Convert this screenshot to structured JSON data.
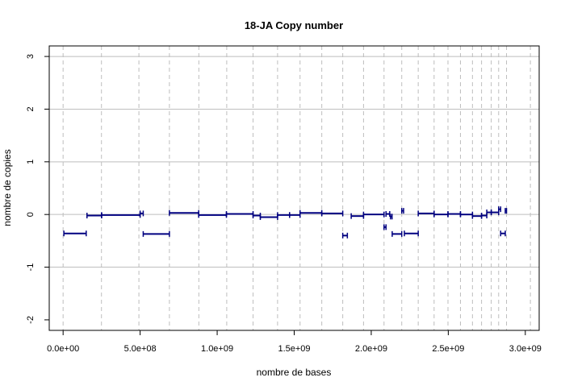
{
  "chart_data": {
    "type": "segment",
    "title": "18-JA Copy number",
    "xlabel": "nombre de bases",
    "ylabel": "nombre de copies",
    "xlim": [
      -90000000,
      3090000000
    ],
    "ylim": [
      -2.2,
      3.2
    ],
    "x_ticks": [
      0,
      500000000,
      1000000000,
      1500000000,
      2000000000,
      2500000000,
      3000000000
    ],
    "x_tick_labels": [
      "0.0e+00",
      "5.0e+08",
      "1.0e+09",
      "1.5e+09",
      "2.0e+09",
      "2.5e+09",
      "3.0e+09"
    ],
    "y_ticks": [
      -2,
      -1,
      0,
      1,
      2,
      3
    ],
    "y_tick_labels": [
      "-2",
      "-1",
      "0",
      "1",
      "2",
      "3"
    ],
    "horizontal_grid": [
      -1,
      0,
      1,
      2,
      3
    ],
    "chromosome_boundaries": [
      0,
      249000000,
      492000000,
      690000000,
      881000000,
      1062000000,
      1233000000,
      1392000000,
      1538000000,
      1679000000,
      1815000000,
      1950000000,
      2083000000,
      2198000000,
      2305000000,
      2408000000,
      2498000000,
      2579000000,
      2657000000,
      2716000000,
      2779000000,
      2827000000,
      2878000000,
      3033000000
    ],
    "line_color": "#000080",
    "grid_color": "#bebebe",
    "segments": [
      {
        "x0": 5000000,
        "x1": 150000000,
        "y": -0.36
      },
      {
        "x0": 155000000,
        "x1": 250000000,
        "y": -0.02
      },
      {
        "x0": 250000000,
        "x1": 500000000,
        "y": -0.01
      },
      {
        "x0": 500000000,
        "x1": 520000000,
        "y": 0.02
      },
      {
        "x0": 520000000,
        "x1": 690000000,
        "y": -0.37
      },
      {
        "x0": 690000000,
        "x1": 880000000,
        "y": 0.03
      },
      {
        "x0": 880000000,
        "x1": 1060000000,
        "y": -0.01
      },
      {
        "x0": 1060000000,
        "x1": 1233000000,
        "y": 0.01
      },
      {
        "x0": 1233000000,
        "x1": 1280000000,
        "y": -0.02
      },
      {
        "x0": 1280000000,
        "x1": 1392000000,
        "y": -0.05
      },
      {
        "x0": 1392000000,
        "x1": 1470000000,
        "y": -0.01
      },
      {
        "x0": 1470000000,
        "x1": 1538000000,
        "y": -0.01
      },
      {
        "x0": 1538000000,
        "x1": 1679000000,
        "y": 0.03
      },
      {
        "x0": 1679000000,
        "x1": 1815000000,
        "y": 0.02
      },
      {
        "x0": 1815000000,
        "x1": 1845000000,
        "y": -0.4
      },
      {
        "x0": 1870000000,
        "x1": 1950000000,
        "y": -0.03
      },
      {
        "x0": 1950000000,
        "x1": 2083000000,
        "y": 0.0
      },
      {
        "x0": 2083000000,
        "x1": 2096000000,
        "y": -0.24
      },
      {
        "x0": 2096000000,
        "x1": 2120000000,
        "y": 0.01
      },
      {
        "x0": 2125000000,
        "x1": 2135000000,
        "y": -0.04
      },
      {
        "x0": 2136000000,
        "x1": 2198000000,
        "y": -0.37
      },
      {
        "x0": 2198000000,
        "x1": 2210000000,
        "y": 0.07
      },
      {
        "x0": 2215000000,
        "x1": 2305000000,
        "y": -0.36
      },
      {
        "x0": 2305000000,
        "x1": 2408000000,
        "y": 0.02
      },
      {
        "x0": 2408000000,
        "x1": 2498000000,
        "y": 0.0
      },
      {
        "x0": 2498000000,
        "x1": 2579000000,
        "y": 0.01
      },
      {
        "x0": 2579000000,
        "x1": 2657000000,
        "y": 0.0
      },
      {
        "x0": 2657000000,
        "x1": 2716000000,
        "y": -0.03
      },
      {
        "x0": 2716000000,
        "x1": 2750000000,
        "y": -0.02
      },
      {
        "x0": 2750000000,
        "x1": 2779000000,
        "y": 0.04
      },
      {
        "x0": 2779000000,
        "x1": 2827000000,
        "y": 0.04
      },
      {
        "x0": 2827000000,
        "x1": 2840000000,
        "y": 0.1
      },
      {
        "x0": 2840000000,
        "x1": 2870000000,
        "y": -0.36
      },
      {
        "x0": 2870000000,
        "x1": 2878000000,
        "y": 0.07
      }
    ]
  }
}
